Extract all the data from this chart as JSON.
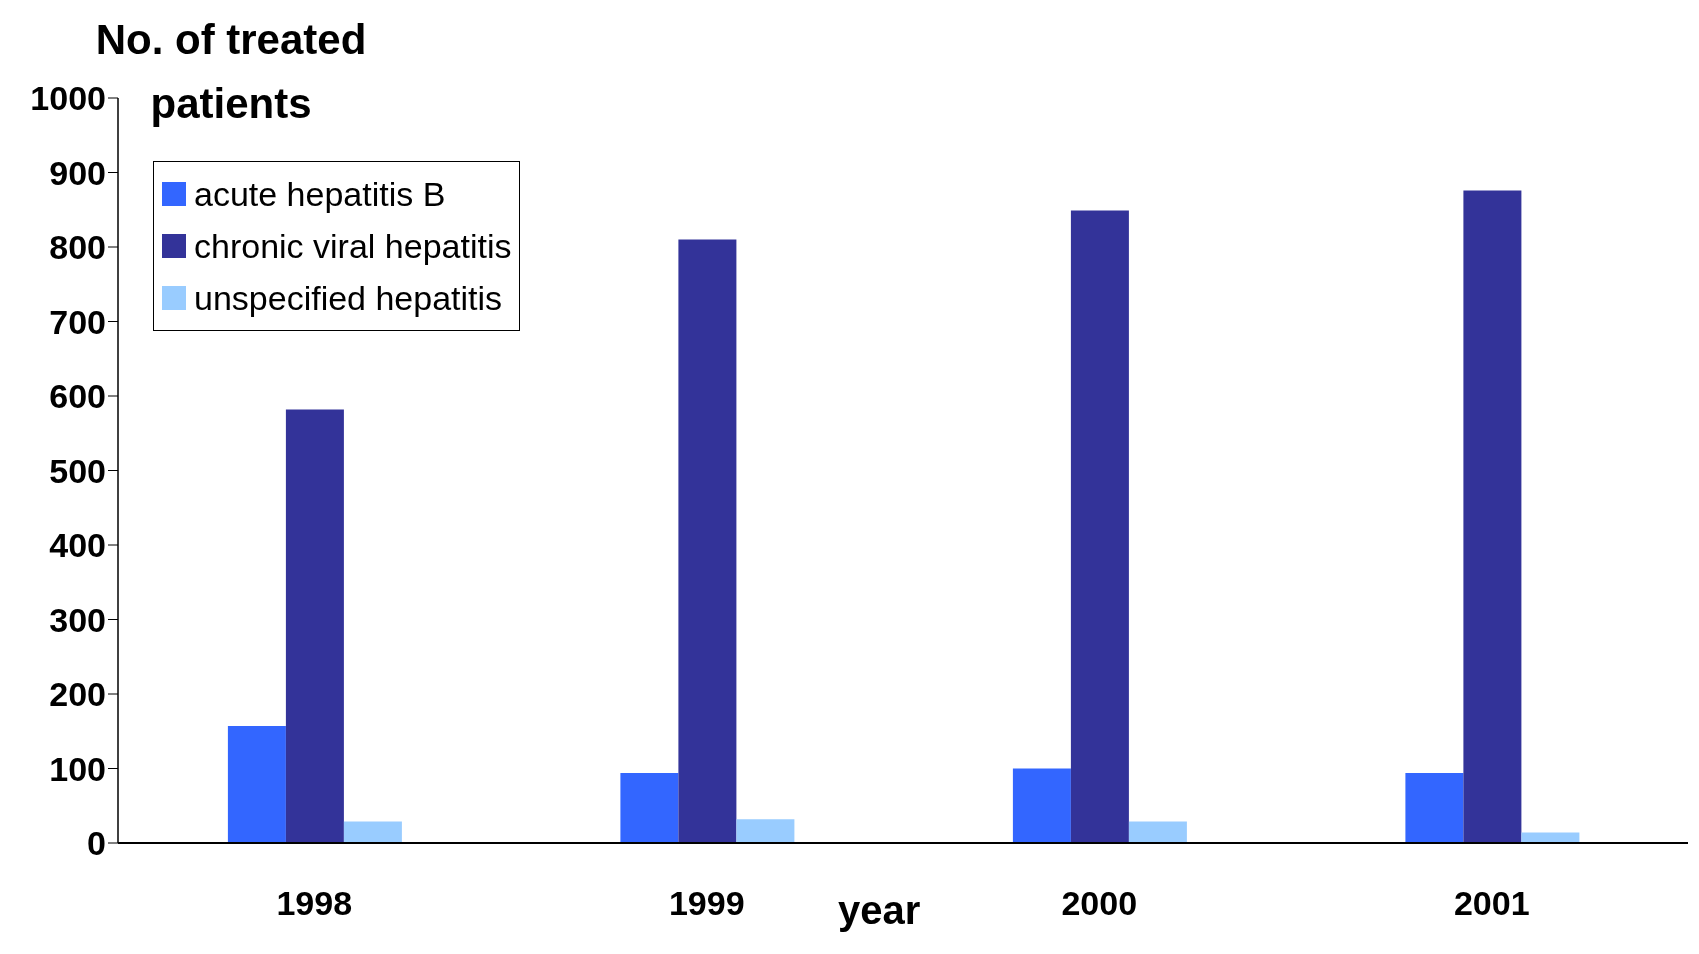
{
  "chart_data": {
    "type": "bar",
    "ylabel": "No. of treated patients",
    "xlabel": "year",
    "categories": [
      "1998",
      "1999",
      "2000",
      "2001"
    ],
    "series": [
      {
        "name": "acute hepatitis B",
        "color": "#3366ff",
        "values": [
          157,
          94,
          100,
          94
        ]
      },
      {
        "name": "chronic viral hepatitis",
        "color": "#333399",
        "values": [
          582,
          810,
          849,
          876
        ]
      },
      {
        "name": "unspecified hepatitis",
        "color": "#99ccff",
        "values": [
          29,
          32,
          29,
          14
        ]
      }
    ],
    "ylim": [
      0,
      1000
    ],
    "yticks": [
      0,
      100,
      200,
      300,
      400,
      500,
      600,
      700,
      800,
      900,
      1000
    ],
    "grid": false,
    "legend": "top left"
  }
}
